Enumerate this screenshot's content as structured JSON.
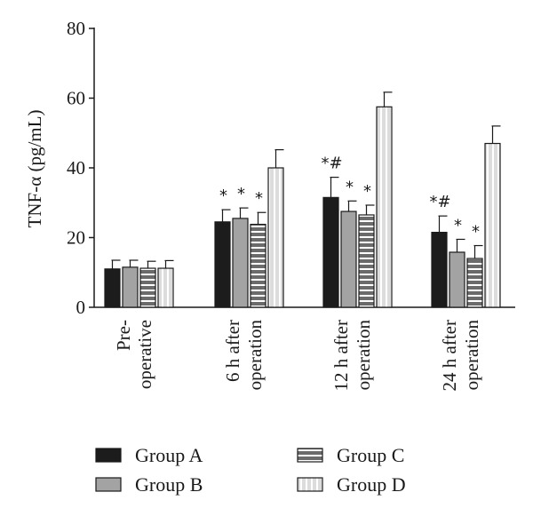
{
  "chart_data": {
    "type": "bar",
    "ylabel": "TNF-α (pg/mL)",
    "ylim": [
      0,
      80
    ],
    "yticks": [
      0,
      20,
      40,
      60,
      80
    ],
    "grid": false,
    "legend_position": "bottom",
    "categories": [
      [
        "Pre-",
        "operative"
      ],
      [
        "6 h after",
        "operation"
      ],
      [
        "12 h after",
        "operation"
      ],
      [
        "24 h after",
        "operation"
      ]
    ],
    "series": [
      {
        "name": "Group A",
        "pattern": "solid-dark",
        "color": "#1c1c1c",
        "values": [
          11.0,
          24.5,
          31.5,
          21.5
        ],
        "errors": [
          2.5,
          3.5,
          5.8,
          4.7
        ],
        "annotations": [
          "",
          "*",
          "*#",
          "*#"
        ]
      },
      {
        "name": "Group B",
        "pattern": "solid-gray",
        "color": "#a3a3a3",
        "values": [
          11.5,
          25.5,
          27.5,
          15.8
        ],
        "errors": [
          2.0,
          3.0,
          3.0,
          3.7
        ],
        "annotations": [
          "",
          "*",
          "*",
          "*"
        ]
      },
      {
        "name": "Group C",
        "pattern": "horizontal-lines",
        "color": "#6b6b6b",
        "values": [
          11.2,
          23.8,
          26.5,
          14.0
        ],
        "errors": [
          2.0,
          3.4,
          2.8,
          3.7
        ],
        "annotations": [
          "",
          "*",
          "*",
          "*"
        ]
      },
      {
        "name": "Group D",
        "pattern": "vertical-lines",
        "color": "#dcdcdc",
        "values": [
          11.2,
          40.0,
          57.5,
          47.0
        ],
        "errors": [
          2.2,
          5.2,
          4.2,
          5.0
        ],
        "annotations": [
          "",
          "",
          "",
          ""
        ]
      }
    ]
  }
}
